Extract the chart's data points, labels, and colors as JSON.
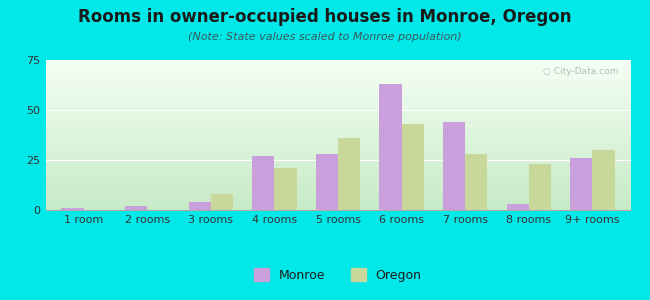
{
  "title": "Rooms in owner-occupied houses in Monroe, Oregon",
  "subtitle": "(Note: State values scaled to Monroe population)",
  "categories": [
    "1 room",
    "2 rooms",
    "3 rooms",
    "4 rooms",
    "5 rooms",
    "6 rooms",
    "7 rooms",
    "8 rooms",
    "9+ rooms"
  ],
  "monroe_values": [
    1,
    2,
    4,
    27,
    28,
    63,
    44,
    3,
    26
  ],
  "oregon_values": [
    0,
    0,
    8,
    21,
    36,
    43,
    28,
    23,
    30
  ],
  "monroe_color": "#c9a0dc",
  "oregon_color": "#c8d89a",
  "background_outer": "#00e8e8",
  "gradient_top_left": "#c8e8c8",
  "gradient_bottom_right": "#f5faf5",
  "ylim": [
    0,
    75
  ],
  "yticks": [
    0,
    25,
    50,
    75
  ],
  "title_fontsize": 12,
  "subtitle_fontsize": 8,
  "axis_fontsize": 8,
  "legend_fontsize": 9,
  "bar_width": 0.35
}
